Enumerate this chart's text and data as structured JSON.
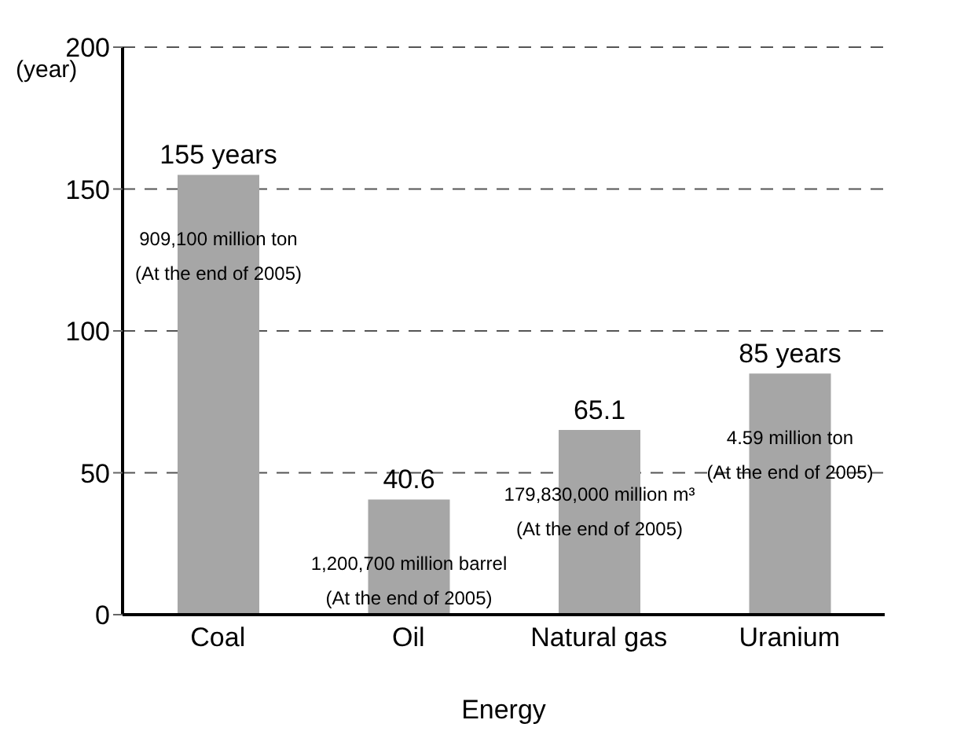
{
  "chart_data": {
    "type": "bar",
    "xlabel": "Energy",
    "ylabel": "(year)",
    "categories": [
      "Coal",
      "Oil",
      "Natural gas",
      "Uranium"
    ],
    "values": [
      155,
      40.6,
      65.1,
      85
    ],
    "value_labels": [
      "155 years",
      "40.6",
      "65.1",
      "85 years"
    ],
    "color": "#a6a6a6",
    "ylim": [
      0,
      200
    ],
    "yticks": [
      0,
      50,
      100,
      150,
      200
    ],
    "grid": "y",
    "line_style": "dashed",
    "legend": false,
    "annotations": [
      "909,100 million ton",
      "(At the end of 2005)",
      "1,200,700 million barrel",
      "(At the end of 2005)",
      "179,830,000 million m³",
      "(At the end of 2005)",
      "4.59 million ton",
      "(At the end of 2005)"
    ]
  }
}
